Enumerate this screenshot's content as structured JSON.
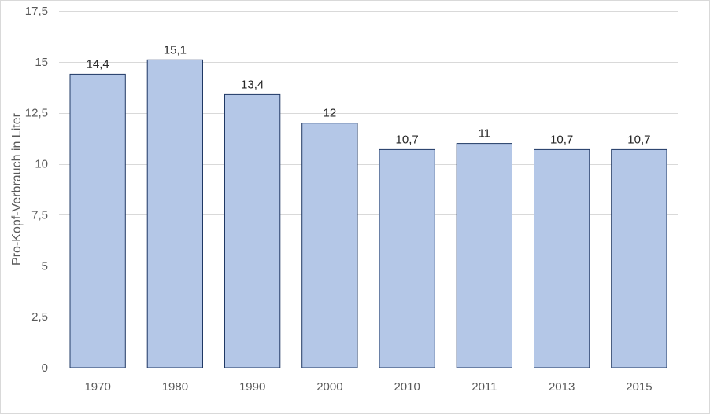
{
  "chart_data": {
    "type": "bar",
    "title": "",
    "xlabel": "",
    "ylabel": "Pro-Kopf-Verbrauch in Liter",
    "categories": [
      "1970",
      "1980",
      "1990",
      "2000",
      "2010",
      "2011",
      "2013",
      "2015"
    ],
    "values": [
      14.4,
      15.1,
      13.4,
      12,
      10.7,
      11,
      10.7,
      10.7
    ],
    "data_labels": [
      "14,4",
      "15,1",
      "13,4",
      "12",
      "10,7",
      "11",
      "10,7",
      "10,7"
    ],
    "ylim": [
      0,
      17.5
    ],
    "yticks": [
      0,
      2.5,
      5,
      7.5,
      10,
      12.5,
      15,
      17.5
    ],
    "ytick_labels": [
      "0",
      "2,5",
      "5",
      "7,5",
      "10",
      "12,5",
      "15",
      "17,5"
    ],
    "grid": true,
    "legend": "none",
    "colors": {
      "bar_fill": "#b4c7e7",
      "bar_stroke": "#1f3864",
      "gridline": "#d9d9d9",
      "axis_line": "#bfbfbf"
    }
  }
}
